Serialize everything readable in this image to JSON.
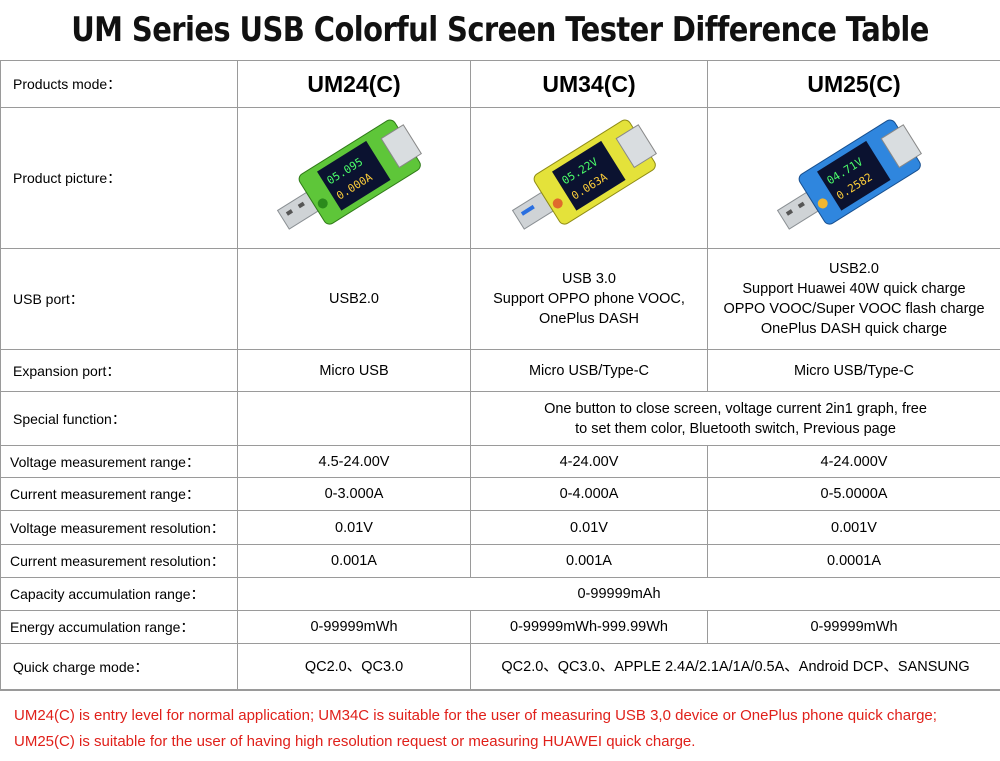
{
  "title": "UM Series USB Colorful Screen Tester Difference Table",
  "rows": {
    "mode": {
      "label": "Products mode：",
      "um24": "UM24(C)",
      "um34": "UM34(C)",
      "um25": "UM25(C)"
    },
    "picture": {
      "label": "Product picture："
    },
    "usb": {
      "label": "USB port：",
      "um24": "USB2.0",
      "um34": [
        "USB 3.0",
        "Support OPPO phone VOOC,",
        "OnePlus DASH"
      ],
      "um25": [
        "USB2.0",
        "Support Huawei 40W quick charge",
        "OPPO VOOC/Super VOOC flash charge",
        "OnePlus DASH quick charge"
      ]
    },
    "expansion": {
      "label": "Expansion port：",
      "um24": "Micro USB",
      "um34": "Micro USB/Type-C",
      "um25": "Micro USB/Type-C"
    },
    "special": {
      "label": "Special function：",
      "um24": "",
      "shared": [
        "One button to close screen, voltage current 2in1 graph, free",
        "to set them color, Bluetooth switch, Previous page"
      ]
    },
    "vrange": {
      "label": "Voltage measurement range：",
      "um24": "4.5-24.00V",
      "um34": "4-24.00V",
      "um25": "4-24.000V"
    },
    "crange": {
      "label": "Current measurement range：",
      "um24": "0-3.000A",
      "um34": "0-4.000A",
      "um25": "0-5.0000A"
    },
    "vres": {
      "label": "Voltage measurement resolution：",
      "um24": "0.01V",
      "um34": "0.01V",
      "um25": "0.001V"
    },
    "cres": {
      "label": "Current measurement resolution：",
      "um24": "0.001A",
      "um34": "0.001A",
      "um25": "0.0001A"
    },
    "capacity": {
      "label": "Capacity accumulation range：",
      "all": "0-99999mAh"
    },
    "energy": {
      "label": "Energy accumulation range：",
      "um24": "0-99999mWh",
      "um34": "0-99999mWh-999.99Wh",
      "um25": "0-99999mWh"
    },
    "quick": {
      "label": "Quick charge mode：",
      "um24": "QC2.0、QC3.0",
      "shared": "QC2.0、QC3.0、APPLE 2.4A/2.1A/1A/0.5A、Android DCP、SANSUNG"
    }
  },
  "devices": {
    "um24": {
      "body_color": "#5ec639",
      "screen": [
        "05.095",
        "0.000A"
      ]
    },
    "um34": {
      "body_color": "#e4e23a",
      "screen": [
        "05.22V",
        "0.063A"
      ]
    },
    "um25": {
      "body_color": "#2f86de",
      "screen": [
        "04.71V",
        "0.2582"
      ]
    }
  },
  "note": [
    "UM24(C) is  entry level for normal application; UM34C is suitable for the user of measuring USB 3,0 device or OnePlus phone quick charge;",
    "UM25(C) is suitable for the user of having high resolution request or measuring HUAWEI quick charge."
  ]
}
